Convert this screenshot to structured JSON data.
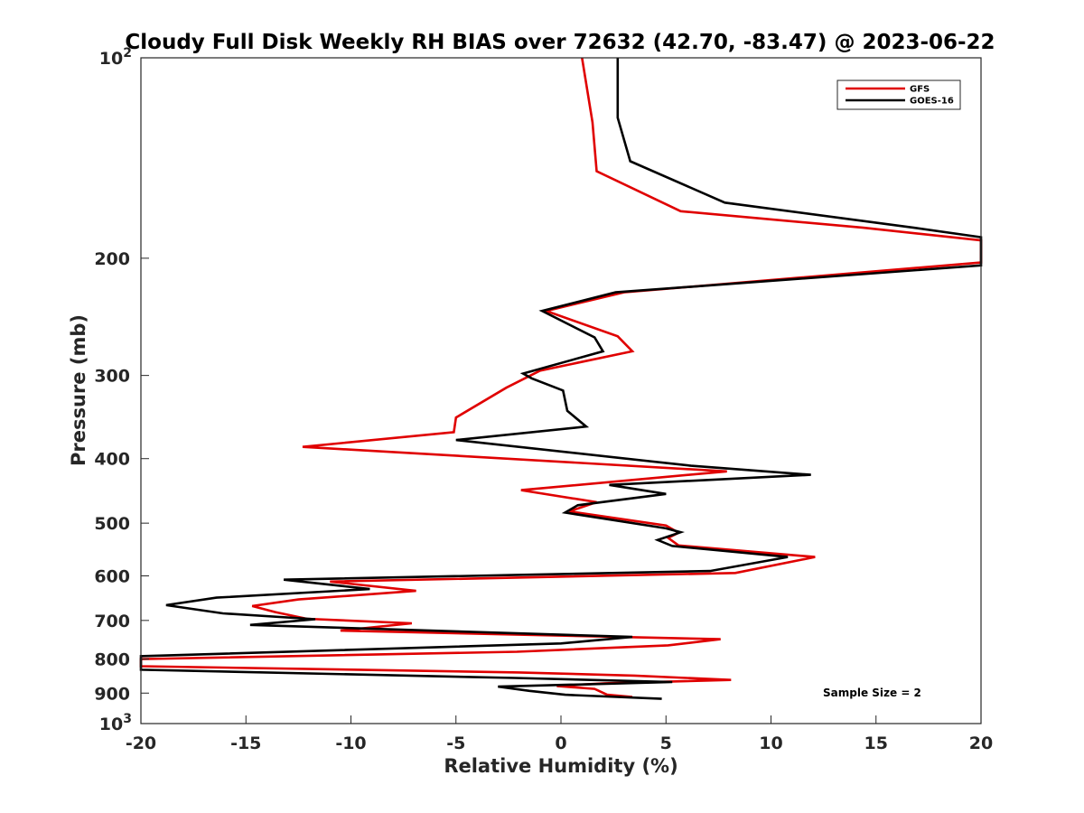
{
  "chart_data": {
    "type": "line",
    "title": "Cloudy Full Disk Weekly RH BIAS over 72632 (42.70, -83.47) @ 2023-06-22",
    "xlabel": "Relative Humidity (%)",
    "ylabel": "Pressure (mb)",
    "xlim": [
      -20,
      20
    ],
    "ylim": [
      100,
      1000
    ],
    "y_scale": "log",
    "y_reversed": true,
    "x_ticks": [
      "-20",
      "-15",
      "-10",
      "-5",
      "0",
      "5",
      "10",
      "15",
      "20"
    ],
    "y_ticks": [
      {
        "value": 100,
        "base": "10",
        "exp": "2"
      },
      {
        "value": 200,
        "label": "200"
      },
      {
        "value": 300,
        "label": "300"
      },
      {
        "value": 400,
        "label": "400"
      },
      {
        "value": 500,
        "label": "500"
      },
      {
        "value": 600,
        "label": "600"
      },
      {
        "value": 700,
        "label": "700"
      },
      {
        "value": 800,
        "label": "800"
      },
      {
        "value": 900,
        "label": "900"
      },
      {
        "value": 1000,
        "base": "10",
        "exp": "3"
      }
    ],
    "grid": false,
    "legend_position": "top-right",
    "annotation": "Sample Size = 2",
    "series": [
      {
        "name": "GFS",
        "color": "#e00000",
        "points": [
          [
            1.0,
            100
          ],
          [
            1.5,
            125
          ],
          [
            1.7,
            148
          ],
          [
            5.7,
            170
          ],
          [
            14.4,
            180
          ],
          [
            20.0,
            188
          ],
          [
            20.0,
            203
          ],
          [
            3.0,
            225
          ],
          [
            -0.7,
            240
          ],
          [
            2.7,
            262
          ],
          [
            3.4,
            276
          ],
          [
            -1.0,
            295
          ],
          [
            -2.6,
            313
          ],
          [
            -5.0,
            347
          ],
          [
            -5.1,
            365
          ],
          [
            -12.3,
            384
          ],
          [
            7.9,
            418
          ],
          [
            -1.9,
            446
          ],
          [
            1.7,
            465
          ],
          [
            0.4,
            480
          ],
          [
            5.0,
            504
          ],
          [
            5.6,
            517
          ],
          [
            5.1,
            526
          ],
          [
            5.6,
            540
          ],
          [
            12.1,
            562
          ],
          [
            8.3,
            594
          ],
          [
            -11.0,
            612
          ],
          [
            -6.9,
            632
          ],
          [
            -12.5,
            651
          ],
          [
            -14.7,
            666
          ],
          [
            -13.6,
            680
          ],
          [
            -12.1,
            696
          ],
          [
            -7.1,
            707
          ],
          [
            -10.5,
            725
          ],
          [
            7.6,
            747
          ],
          [
            5.1,
            763
          ],
          [
            -2.1,
            780
          ],
          [
            -20.0,
            800
          ],
          [
            -20.0,
            820
          ],
          [
            -2.0,
            838
          ],
          [
            3.5,
            847
          ],
          [
            8.1,
            860
          ],
          [
            2.1,
            870
          ],
          [
            -0.2,
            878
          ],
          [
            1.6,
            887
          ],
          [
            2.2,
            905
          ],
          [
            3.4,
            912
          ]
        ]
      },
      {
        "name": "GOES-16",
        "color": "#000000",
        "points": [
          [
            2.7,
            100
          ],
          [
            2.7,
            123
          ],
          [
            3.3,
            143
          ],
          [
            7.8,
            165
          ],
          [
            16.8,
            180
          ],
          [
            20.0,
            186
          ],
          [
            20.0,
            205
          ],
          [
            2.6,
            225
          ],
          [
            -0.9,
            240
          ],
          [
            1.6,
            263
          ],
          [
            2.0,
            276
          ],
          [
            -1.8,
            298
          ],
          [
            -1.4,
            303
          ],
          [
            0.1,
            316
          ],
          [
            0.3,
            339
          ],
          [
            1.2,
            358
          ],
          [
            -5.0,
            375
          ],
          [
            6.2,
            410
          ],
          [
            11.9,
            423
          ],
          [
            2.3,
            438
          ],
          [
            5.0,
            452
          ],
          [
            0.8,
            470
          ],
          [
            0.2,
            482
          ],
          [
            5.0,
            509
          ],
          [
            5.7,
            516
          ],
          [
            4.6,
            530
          ],
          [
            5.3,
            541
          ],
          [
            10.8,
            562
          ],
          [
            7.1,
            590
          ],
          [
            -13.2,
            608
          ],
          [
            -9.1,
            628
          ],
          [
            -16.4,
            647
          ],
          [
            -18.8,
            664
          ],
          [
            -16.1,
            683
          ],
          [
            -11.7,
            697
          ],
          [
            -14.8,
            711
          ],
          [
            3.4,
            741
          ],
          [
            0.0,
            758
          ],
          [
            -20.0,
            792
          ],
          [
            -20.0,
            830
          ],
          [
            -2.2,
            854
          ],
          [
            5.3,
            866
          ],
          [
            -3.0,
            880
          ],
          [
            -1.5,
            893
          ],
          [
            0.2,
            905
          ],
          [
            4.8,
            918
          ]
        ]
      }
    ]
  }
}
